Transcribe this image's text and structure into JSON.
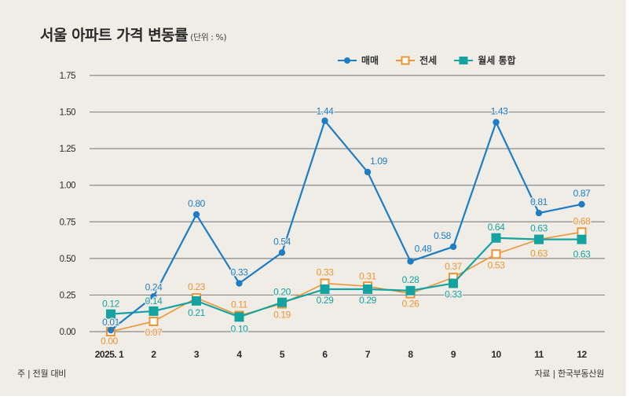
{
  "header": {
    "title": "서울 아파트 가격 변동률",
    "unit": "(단위 : %)"
  },
  "footer": {
    "note": "주 | 전월 대비",
    "source": "자료 | 한국부동산원"
  },
  "colors": {
    "background": "#f0ede7",
    "sale": "#1f7dc4",
    "jeonse": "#ee9433",
    "monthly": "#14a3a0",
    "grid": "#8a8a8a",
    "axis_text": "#2a2a2a"
  },
  "chart_data": {
    "type": "line",
    "title": "서울 아파트 가격 변동률",
    "subtitle": "(단위 : %)",
    "xlabel": "",
    "ylabel": "",
    "categories": [
      "2025. 1",
      "2",
      "3",
      "4",
      "5",
      "6",
      "7",
      "8",
      "9",
      "10",
      "11",
      "12"
    ],
    "ylim": [
      0,
      1.75
    ],
    "yticks": [
      "0.00",
      "0.25",
      "0.50",
      "0.75",
      "1.00",
      "1.25",
      "1.50",
      "1.75"
    ],
    "ytick_values": [
      0,
      0.25,
      0.5,
      0.75,
      1.0,
      1.25,
      1.5,
      1.75
    ],
    "grid": true,
    "legend_position": "top-right",
    "series": [
      {
        "name": "매매",
        "marker": "circle",
        "values": [
          0.01,
          0.24,
          0.8,
          0.33,
          0.54,
          1.44,
          1.09,
          0.48,
          0.58,
          1.43,
          0.81,
          0.87
        ],
        "labels": [
          "0.01",
          "0.24",
          "0.80",
          "0.33",
          "0.54",
          "1.44",
          "1.09",
          "0.48",
          "0.58",
          "1.43",
          "0.81",
          "0.87"
        ]
      },
      {
        "name": "전세",
        "marker": "hollow-square",
        "values": [
          0.0,
          0.07,
          0.23,
          0.11,
          0.19,
          0.33,
          0.31,
          0.26,
          0.37,
          0.53,
          0.63,
          0.68
        ],
        "labels": [
          "0.00",
          "0.07",
          "0.23",
          "0.11",
          "0.19",
          "0.33",
          "0.31",
          "0.26",
          "0.37",
          "0.53",
          "0.63",
          "0.68"
        ]
      },
      {
        "name": "월세 통합",
        "marker": "filled-square",
        "values": [
          0.12,
          0.14,
          0.21,
          0.1,
          0.2,
          0.29,
          0.29,
          0.28,
          0.33,
          0.64,
          0.63,
          0.63
        ],
        "labels": [
          "0.12",
          "0.14",
          "0.21",
          "0.10",
          "0.20",
          "0.29",
          "0.29",
          "0.28",
          "0.33",
          "0.64",
          "0.63",
          "0.63"
        ]
      }
    ]
  }
}
